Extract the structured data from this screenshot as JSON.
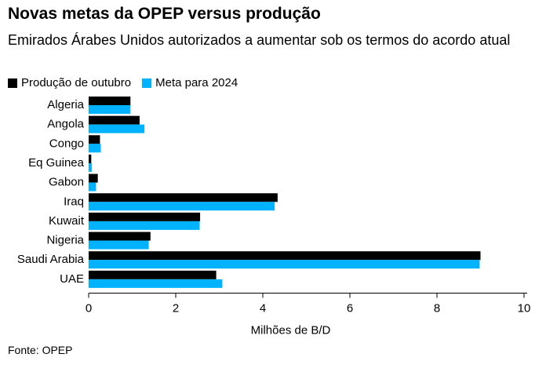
{
  "header": {
    "title": "Novas metas da OPEP versus produção",
    "subtitle": "Emirados Árabes Unidos autorizados a aumentar sob os termos do acordo atual"
  },
  "footer": {
    "source": "Fonte: OPEP"
  },
  "colors": {
    "series1": "#000000",
    "series2": "#00b2ff"
  },
  "chart_data": {
    "type": "bar",
    "orientation": "horizontal",
    "title": "Novas metas da OPEP versus produção",
    "subtitle": "Emirados Árabes Unidos autorizados a aumentar sob os termos do acordo atual",
    "xlabel": "Milhões de B/D",
    "ylabel": "",
    "xlim": [
      0,
      10
    ],
    "xticks": [
      "0",
      "2",
      "4",
      "6",
      "8",
      "10"
    ],
    "grid": false,
    "legend_position": "top-left",
    "categories": [
      "Algeria",
      "Angola",
      "Congo",
      "Eq Guinea",
      "Gabon",
      "Iraq",
      "Kuwait",
      "Nigeria",
      "Saudi Arabia",
      "UAE"
    ],
    "series": [
      {
        "name": "Produção de outubro",
        "color": "#000000",
        "values": [
          0.96,
          1.17,
          0.26,
          0.06,
          0.21,
          4.34,
          2.56,
          1.42,
          9.0,
          2.93
        ]
      },
      {
        "name": "Meta para 2024",
        "color": "#00b2ff",
        "values": [
          0.96,
          1.28,
          0.28,
          0.07,
          0.17,
          4.27,
          2.55,
          1.38,
          8.98,
          3.07
        ]
      }
    ]
  }
}
